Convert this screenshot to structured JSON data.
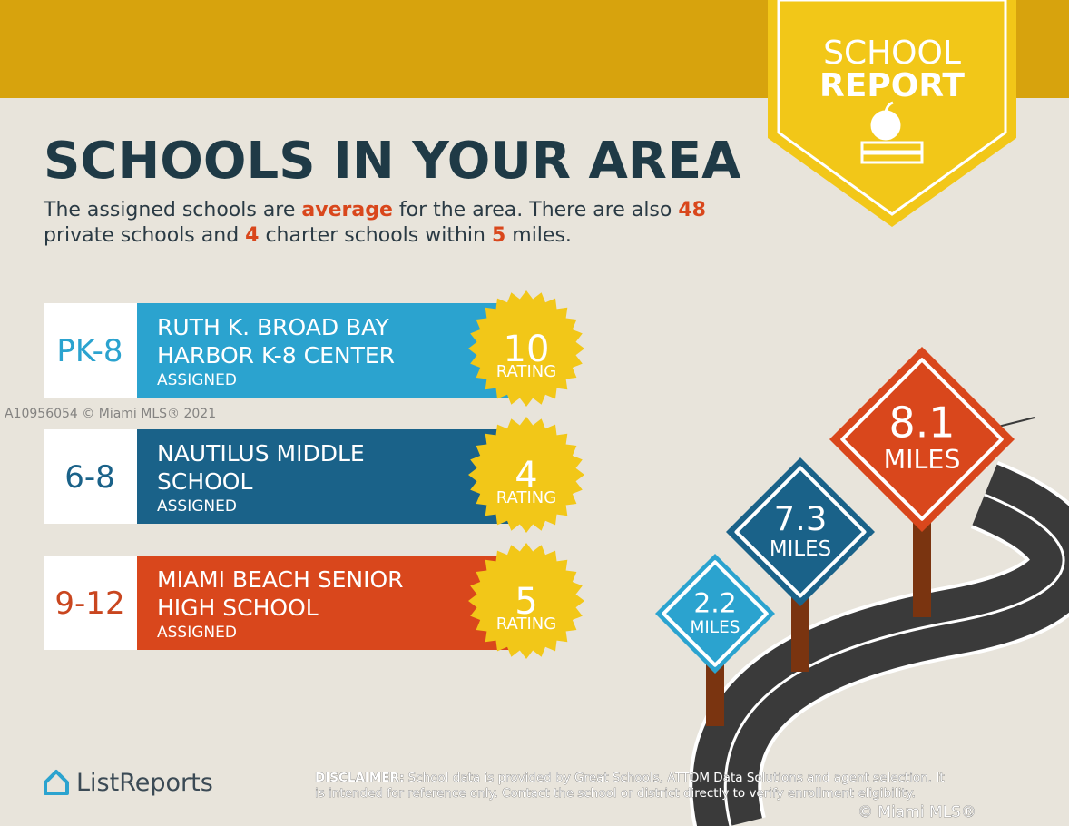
{
  "header": {
    "badge_line1": "SCHOOL",
    "badge_line2": "REPORT",
    "title": "SCHOOLS IN YOUR AREA",
    "summary_lines": [
      [
        {
          "text": "The assigned schools are ",
          "highlight": false
        },
        {
          "text": "average",
          "highlight": true
        },
        {
          "text": " for the area. There are also ",
          "highlight": false
        },
        {
          "text": "48",
          "highlight": true
        }
      ],
      [
        {
          "text": "private schools and ",
          "highlight": false
        },
        {
          "text": "4",
          "highlight": true
        },
        {
          "text": " charter schools within ",
          "highlight": false
        },
        {
          "text": "5",
          "highlight": true
        },
        {
          "text": " miles.",
          "highlight": false
        }
      ]
    ]
  },
  "schools": [
    {
      "grade": "PK-8",
      "name_lines": [
        "RUTH K. BROAD BAY",
        "HARBOR K-8 CENTER"
      ],
      "status": "ASSIGNED",
      "rating": "10",
      "rating_label": "RATING",
      "color": "#2ba3cf",
      "grade_color": "#2ba3cf"
    },
    {
      "grade": "6-8",
      "name_lines": [
        "NAUTILUS MIDDLE",
        "SCHOOL"
      ],
      "status": "ASSIGNED",
      "rating": "4",
      "rating_label": "RATING",
      "color": "#1a6289",
      "grade_color": "#1a6289"
    },
    {
      "grade": "9-12",
      "name_lines": [
        "MIAMI BEACH SENIOR",
        "HIGH SCHOOL"
      ],
      "status": "ASSIGNED",
      "rating": "5",
      "rating_label": "RATING",
      "color": "#d9471c",
      "grade_color": "#c9461f"
    }
  ],
  "distance_signs": [
    {
      "value": "2.2",
      "unit": "MILES",
      "color": "#2ba3cf"
    },
    {
      "value": "7.3",
      "unit": "MILES",
      "color": "#1a6289"
    },
    {
      "value": "8.1",
      "unit": "MILES",
      "color": "#d9471c"
    }
  ],
  "watermark": "A10956054 © Miami MLS® 2021",
  "logo": "ListReports",
  "disclaimer": {
    "label": "DISCLAIMER:",
    "line1": " School data is provided by Great Schools, ATTOM Data Solutions and agent selection. It",
    "line2": "is intended for reference only. Contact the school or district directly to verify enrollment eligibility."
  },
  "copyright": "© Miami MLS®"
}
